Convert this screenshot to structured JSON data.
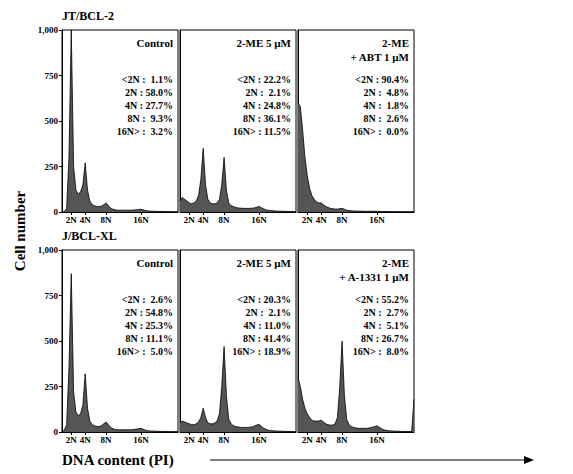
{
  "figure": {
    "ylabel": "Cell number",
    "xlabel": "DNA content (PI)"
  },
  "chart_data": [
    {
      "type": "area",
      "subtitle": "JT/BCL-2",
      "title": "Control",
      "color": "#555555",
      "grid": false,
      "annotations": [
        "<2N :  1.1%",
        "2N : 58.0%",
        "4N : 27.7%",
        "8N :  9.3%",
        "16N> :  3.2%"
      ],
      "xlim": [
        0,
        100
      ],
      "xticks": [
        {
          "value": 8,
          "label": "2N"
        },
        {
          "value": 20,
          "label": "4N"
        },
        {
          "value": 38,
          "label": "8N"
        },
        {
          "value": 68,
          "label": "16N"
        }
      ],
      "ylim": [
        0,
        1000
      ],
      "yticks": [
        0,
        250,
        500,
        750,
        1000
      ],
      "x": [
        0,
        2,
        4,
        6,
        8,
        10,
        12,
        14,
        16,
        18,
        20,
        22,
        24,
        26,
        28,
        30,
        32,
        34,
        36,
        38,
        40,
        42,
        44,
        46,
        48,
        50,
        52,
        54,
        56,
        58,
        60,
        62,
        64,
        66,
        68,
        70,
        72,
        74,
        76,
        78,
        80,
        82,
        84,
        86,
        88,
        90,
        92,
        94,
        96,
        98,
        100
      ],
      "values": [
        0,
        0,
        20,
        300,
        1000,
        250,
        120,
        100,
        110,
        150,
        270,
        120,
        60,
        40,
        35,
        30,
        30,
        32,
        40,
        50,
        35,
        20,
        15,
        12,
        10,
        10,
        10,
        10,
        10,
        10,
        10,
        11,
        12,
        14,
        15,
        12,
        8,
        6,
        5,
        4,
        4,
        3,
        3,
        3,
        2,
        2,
        2,
        2,
        1,
        1,
        1
      ]
    },
    {
      "type": "area",
      "title": "2-ME 5 µM",
      "color": "#555555",
      "grid": false,
      "tick_labels": "x",
      "annotations": [
        "<2N : 22.2%",
        "2N :  2.1%",
        "4N : 24.8%",
        "8N : 36.1%",
        "16N> : 11.5%"
      ],
      "xlim": [
        0,
        100
      ],
      "xticks": [
        {
          "value": 8,
          "label": "2N"
        },
        {
          "value": 20,
          "label": "4N"
        },
        {
          "value": 38,
          "label": "8N"
        },
        {
          "value": 68,
          "label": "16N"
        }
      ],
      "ylim": [
        0,
        1000
      ],
      "yticks": [
        0,
        250,
        500,
        750,
        1000
      ],
      "x": [
        0,
        2,
        4,
        6,
        8,
        10,
        12,
        14,
        16,
        18,
        20,
        22,
        24,
        26,
        28,
        30,
        32,
        34,
        36,
        38,
        40,
        42,
        44,
        46,
        48,
        50,
        52,
        54,
        56,
        58,
        60,
        62,
        64,
        66,
        68,
        70,
        72,
        74,
        76,
        78,
        80,
        82,
        84,
        86,
        88,
        90,
        92,
        94,
        96,
        98,
        100
      ],
      "values": [
        60,
        80,
        70,
        60,
        50,
        45,
        50,
        60,
        90,
        180,
        350,
        150,
        70,
        50,
        45,
        45,
        50,
        70,
        150,
        300,
        120,
        50,
        35,
        30,
        25,
        22,
        21,
        20,
        20,
        20,
        20,
        21,
        22,
        26,
        30,
        24,
        18,
        12,
        9,
        8,
        7,
        6,
        5,
        5,
        4,
        4,
        3,
        3,
        3,
        2,
        2
      ]
    },
    {
      "type": "area",
      "title": "2-ME\n+ ABT 1 µM",
      "color": "#555555",
      "grid": false,
      "tick_labels": "x",
      "annotations": [
        "<2N : 90.4%",
        "2N :  4.8%",
        "4N :  1.8%",
        "8N :  2.6%",
        "16N> :  0.0%"
      ],
      "xlim": [
        0,
        100
      ],
      "xticks": [
        {
          "value": 8,
          "label": "2N"
        },
        {
          "value": 20,
          "label": "4N"
        },
        {
          "value": 38,
          "label": "8N"
        },
        {
          "value": 68,
          "label": "16N"
        }
      ],
      "ylim": [
        0,
        1000
      ],
      "yticks": [
        0,
        250,
        500,
        750,
        1000
      ],
      "x": [
        0,
        2,
        4,
        6,
        8,
        10,
        12,
        14,
        16,
        18,
        20,
        22,
        24,
        26,
        28,
        30,
        32,
        34,
        36,
        38,
        40,
        42,
        44,
        46,
        48,
        50,
        52,
        54,
        56,
        58,
        60,
        62,
        64,
        66,
        68,
        70,
        72,
        74,
        76,
        78,
        80,
        82,
        84,
        86,
        88,
        90,
        92,
        94,
        96,
        98,
        100
      ],
      "values": [
        600,
        580,
        450,
        300,
        200,
        130,
        90,
        70,
        55,
        50,
        50,
        40,
        30,
        25,
        20,
        18,
        16,
        16,
        18,
        20,
        15,
        10,
        8,
        7,
        6,
        5,
        5,
        5,
        4,
        4,
        4,
        4,
        4,
        4,
        4,
        3,
        3,
        3,
        3,
        2,
        2,
        2,
        2,
        2,
        1,
        1,
        1,
        1,
        1,
        1,
        1
      ]
    },
    {
      "type": "area",
      "subtitle": "J/BCL-XL",
      "title": "Control",
      "color": "#555555",
      "grid": false,
      "annotations": [
        "<2N :  2.6%",
        "2N : 54.8%",
        "4N : 25.3%",
        "8N : 11.1%",
        "16N> :  5.0%"
      ],
      "xlim": [
        0,
        100
      ],
      "xticks": [
        {
          "value": 8,
          "label": "2N"
        },
        {
          "value": 20,
          "label": "4N"
        },
        {
          "value": 38,
          "label": "8N"
        },
        {
          "value": 68,
          "label": "16N"
        }
      ],
      "ylim": [
        0,
        1000
      ],
      "yticks": [
        0,
        250,
        500,
        750,
        1000
      ],
      "x": [
        0,
        2,
        4,
        6,
        8,
        10,
        12,
        14,
        16,
        18,
        20,
        22,
        24,
        26,
        28,
        30,
        32,
        34,
        36,
        38,
        40,
        42,
        44,
        46,
        48,
        50,
        52,
        54,
        56,
        58,
        60,
        62,
        64,
        66,
        68,
        70,
        72,
        74,
        76,
        78,
        80,
        82,
        84,
        86,
        88,
        90,
        92,
        94,
        96,
        98,
        100
      ],
      "values": [
        0,
        10,
        40,
        350,
        870,
        220,
        110,
        90,
        100,
        150,
        320,
        130,
        60,
        40,
        35,
        30,
        30,
        35,
        45,
        55,
        40,
        25,
        18,
        14,
        12,
        12,
        12,
        12,
        12,
        12,
        13,
        14,
        16,
        18,
        20,
        15,
        10,
        7,
        6,
        5,
        5,
        4,
        4,
        3,
        3,
        3,
        2,
        2,
        2,
        2,
        1
      ]
    },
    {
      "type": "area",
      "title": "2-ME 5 µM",
      "color": "#555555",
      "grid": false,
      "tick_labels": "x",
      "annotations": [
        "<2N : 20.3%",
        "2N :  2.1%",
        "4N : 11.0%",
        "8N : 41.4%",
        "16N> : 18.9%"
      ],
      "xlim": [
        0,
        100
      ],
      "xticks": [
        {
          "value": 8,
          "label": "2N"
        },
        {
          "value": 20,
          "label": "4N"
        },
        {
          "value": 38,
          "label": "8N"
        },
        {
          "value": 68,
          "label": "16N"
        }
      ],
      "ylim": [
        0,
        1000
      ],
      "yticks": [
        0,
        250,
        500,
        750,
        1000
      ],
      "x": [
        0,
        2,
        4,
        6,
        8,
        10,
        12,
        14,
        16,
        18,
        20,
        22,
        24,
        26,
        28,
        30,
        32,
        34,
        36,
        38,
        40,
        42,
        44,
        46,
        48,
        50,
        52,
        54,
        56,
        58,
        60,
        62,
        64,
        66,
        68,
        70,
        72,
        74,
        76,
        78,
        80,
        82,
        84,
        86,
        88,
        90,
        92,
        94,
        96,
        98,
        100
      ],
      "values": [
        50,
        60,
        55,
        50,
        45,
        40,
        40,
        45,
        55,
        80,
        130,
        80,
        50,
        45,
        45,
        50,
        60,
        100,
        250,
        470,
        200,
        70,
        45,
        35,
        30,
        28,
        26,
        25,
        25,
        25,
        26,
        28,
        32,
        38,
        42,
        32,
        22,
        15,
        10,
        8,
        7,
        6,
        5,
        5,
        4,
        4,
        3,
        3,
        3,
        2,
        2
      ]
    },
    {
      "type": "area",
      "title": "2-ME\n+ A-1331 1 µM",
      "color": "#555555",
      "grid": false,
      "tick_labels": "x",
      "annotations": [
        "<2N : 55.2%",
        "2N :  2.7%",
        "4N :  5.1%",
        "8N : 26.7%",
        "16N> :  8.0%"
      ],
      "xlim": [
        0,
        100
      ],
      "xticks": [
        {
          "value": 8,
          "label": "2N"
        },
        {
          "value": 20,
          "label": "4N"
        },
        {
          "value": 38,
          "label": "8N"
        },
        {
          "value": 68,
          "label": "16N"
        }
      ],
      "ylim": [
        0,
        1000
      ],
      "yticks": [
        0,
        250,
        500,
        750,
        1000
      ],
      "x": [
        0,
        2,
        4,
        6,
        8,
        10,
        12,
        14,
        16,
        18,
        20,
        22,
        24,
        26,
        28,
        30,
        32,
        34,
        36,
        38,
        40,
        42,
        44,
        46,
        48,
        50,
        52,
        54,
        56,
        58,
        60,
        62,
        64,
        66,
        68,
        70,
        72,
        74,
        76,
        78,
        80,
        82,
        84,
        86,
        88,
        90,
        92,
        94,
        96,
        98,
        100
      ],
      "values": [
        300,
        250,
        180,
        130,
        100,
        80,
        65,
        60,
        60,
        60,
        65,
        55,
        45,
        40,
        38,
        38,
        45,
        80,
        250,
        500,
        200,
        70,
        40,
        30,
        25,
        22,
        20,
        20,
        20,
        20,
        21,
        23,
        26,
        30,
        34,
        26,
        18,
        12,
        9,
        7,
        6,
        5,
        5,
        4,
        4,
        3,
        3,
        3,
        3,
        3,
        180
      ]
    }
  ]
}
